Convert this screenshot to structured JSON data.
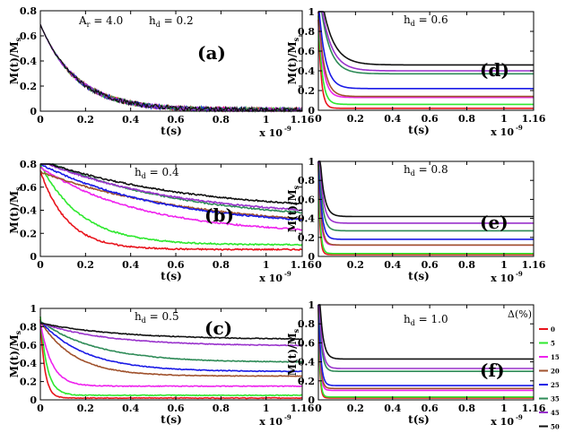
{
  "chart_data": {
    "type": "line",
    "series_colors": [
      "#e8141c",
      "#2ee82e",
      "#ee22ee",
      "#a0522d",
      "#1a1ae6",
      "#2e8b57",
      "#9932cc",
      "#111111"
    ],
    "legend": {
      "title": "Δ(%)",
      "entries": [
        "0",
        "5",
        "15",
        "20",
        "25",
        "35",
        "45",
        "50"
      ]
    },
    "xlabel": "t(s)",
    "ylabel": "M(t)/M",
    "ylabel_sub": "s",
    "x_scale_base": "x 10",
    "x_scale_exp": "-9",
    "panels": [
      {
        "label": "(a)",
        "annotations": [
          "A",
          "r",
          " = 4.0",
          "h",
          "d",
          " = 0.2"
        ],
        "ylim": [
          0,
          0.8
        ],
        "yticks": [
          "0",
          "0.2",
          "0.4",
          "0.6",
          "0.8"
        ],
        "xlim": [
          0,
          1.16
        ],
        "xticks": [
          "0",
          "0.2",
          "0.4",
          "0.6",
          "0.8",
          "1",
          "1.16"
        ],
        "curves": [
          {
            "name": "0",
            "a": 0.68,
            "tau": 0.16,
            "b": 0.01
          },
          {
            "name": "5",
            "a": 0.68,
            "tau": 0.16,
            "b": 0.01
          },
          {
            "name": "15",
            "a": 0.68,
            "tau": 0.16,
            "b": 0.01
          },
          {
            "name": "20",
            "a": 0.68,
            "tau": 0.16,
            "b": 0.01
          },
          {
            "name": "25",
            "a": 0.68,
            "tau": 0.16,
            "b": 0.01
          },
          {
            "name": "35",
            "a": 0.68,
            "tau": 0.16,
            "b": 0.01
          },
          {
            "name": "45",
            "a": 0.68,
            "tau": 0.16,
            "b": 0.01
          },
          {
            "name": "50",
            "a": 0.68,
            "tau": 0.16,
            "b": 0.01
          }
        ]
      },
      {
        "label": "(d)",
        "annotations": [
          "h",
          "d",
          " = 0.6"
        ],
        "ylim": [
          0,
          1
        ],
        "yticks": [
          "0",
          "0.2",
          "0.4",
          "0.6",
          "0.8",
          "1"
        ],
        "xlim": [
          0,
          1.16
        ],
        "xticks": [
          "0",
          "0.2",
          "0.4",
          "0.6",
          "0.8",
          "1",
          "1.16"
        ],
        "curves": [
          {
            "name": "0",
            "a": 0.9,
            "tau": 0.015,
            "b": 0.02
          },
          {
            "name": "5",
            "a": 0.9,
            "tau": 0.02,
            "b": 0.06
          },
          {
            "name": "15",
            "a": 0.9,
            "tau": 0.025,
            "b": 0.13
          },
          {
            "name": "20",
            "a": 0.9,
            "tau": 0.03,
            "b": 0.14
          },
          {
            "name": "25",
            "a": 0.9,
            "tau": 0.035,
            "b": 0.22
          },
          {
            "name": "35",
            "a": 0.9,
            "tau": 0.05,
            "b": 0.37
          },
          {
            "name": "45",
            "a": 0.9,
            "tau": 0.055,
            "b": 0.4
          },
          {
            "name": "50",
            "a": 0.9,
            "tau": 0.06,
            "b": 0.46
          }
        ]
      },
      {
        "label": "(b)",
        "annotations": [
          "h",
          "d",
          " = 0.4"
        ],
        "ylim": [
          0,
          0.8
        ],
        "yticks": [
          "0",
          "0.2",
          "0.4",
          "0.6",
          "0.8"
        ],
        "xlim": [
          0,
          1.16
        ],
        "xticks": [
          "0",
          "0.2",
          "0.4",
          "0.6",
          "0.8",
          "1",
          "1.16"
        ],
        "curves": [
          {
            "name": "0",
            "a": 0.68,
            "tau": 0.12,
            "b": 0.06
          },
          {
            "name": "5",
            "a": 0.7,
            "tau": 0.18,
            "b": 0.1
          },
          {
            "name": "15",
            "a": 0.58,
            "tau": 0.45,
            "b": 0.19
          },
          {
            "name": "20",
            "a": 0.5,
            "tau": 0.7,
            "b": 0.23
          },
          {
            "name": "25",
            "a": 0.55,
            "tau": 0.55,
            "b": 0.25
          },
          {
            "name": "35",
            "a": 0.55,
            "tau": 0.6,
            "b": 0.3
          },
          {
            "name": "45",
            "a": 0.5,
            "tau": 0.6,
            "b": 0.33
          },
          {
            "name": "50",
            "a": 0.45,
            "tau": 0.65,
            "b": 0.38
          }
        ]
      },
      {
        "label": "(e)",
        "annotations": [
          "h",
          "d",
          " = 0.8"
        ],
        "ylim": [
          0,
          1
        ],
        "yticks": [
          "0",
          "0.2",
          "0.4",
          "0.6",
          "0.8",
          "1"
        ],
        "xlim": [
          0,
          1.16
        ],
        "xticks": [
          "0",
          "0.2",
          "0.4",
          "0.6",
          "0.8",
          "1",
          "1.16"
        ],
        "curves": [
          {
            "name": "0",
            "a": 0.95,
            "tau": 0.008,
            "b": 0.02
          },
          {
            "name": "5",
            "a": 0.95,
            "tau": 0.01,
            "b": 0.03
          },
          {
            "name": "15",
            "a": 0.95,
            "tau": 0.012,
            "b": 0.12
          },
          {
            "name": "20",
            "a": 0.95,
            "tau": 0.014,
            "b": 0.12
          },
          {
            "name": "25",
            "a": 0.95,
            "tau": 0.016,
            "b": 0.18
          },
          {
            "name": "35",
            "a": 0.95,
            "tau": 0.018,
            "b": 0.27
          },
          {
            "name": "45",
            "a": 0.95,
            "tau": 0.02,
            "b": 0.35
          },
          {
            "name": "50",
            "a": 0.95,
            "tau": 0.022,
            "b": 0.42
          }
        ]
      },
      {
        "label": "(c)",
        "annotations": [
          "h",
          "d",
          " = 0.5"
        ],
        "ylim": [
          0,
          1
        ],
        "yticks": [
          "0",
          "0.2",
          "0.4",
          "0.6",
          "0.8",
          "1"
        ],
        "xlim": [
          0,
          1.16
        ],
        "xticks": [
          "0",
          "0.2",
          "0.4",
          "0.6",
          "0.8",
          "1",
          "1.16"
        ],
        "curves": [
          {
            "name": "0",
            "a": 0.86,
            "tau": 0.02,
            "b": 0.02
          },
          {
            "name": "5",
            "a": 0.86,
            "tau": 0.03,
            "b": 0.05
          },
          {
            "name": "15",
            "a": 0.7,
            "tau": 0.05,
            "b": 0.15
          },
          {
            "name": "20",
            "a": 0.6,
            "tau": 0.15,
            "b": 0.26
          },
          {
            "name": "25",
            "a": 0.55,
            "tau": 0.2,
            "b": 0.31
          },
          {
            "name": "35",
            "a": 0.45,
            "tau": 0.25,
            "b": 0.41
          },
          {
            "name": "45",
            "a": 0.25,
            "tau": 0.3,
            "b": 0.59
          },
          {
            "name": "50",
            "a": 0.18,
            "tau": 0.35,
            "b": 0.66
          }
        ]
      },
      {
        "label": "(f)",
        "annotations": [
          "h",
          "d",
          " = 1.0"
        ],
        "ylim": [
          0,
          1
        ],
        "yticks": [
          "0",
          "0.2",
          "0.4",
          "0.6",
          "0.8",
          "1"
        ],
        "xlim": [
          0,
          1.16
        ],
        "xticks": [
          "0",
          "0.2",
          "0.4",
          "0.6",
          "0.8",
          "1",
          "1.16"
        ],
        "curves": [
          {
            "name": "0",
            "a": 0.95,
            "tau": 0.007,
            "b": 0.02
          },
          {
            "name": "5",
            "a": 0.95,
            "tau": 0.008,
            "b": 0.03
          },
          {
            "name": "15",
            "a": 0.95,
            "tau": 0.009,
            "b": 0.1
          },
          {
            "name": "20",
            "a": 0.95,
            "tau": 0.01,
            "b": 0.12
          },
          {
            "name": "25",
            "a": 0.95,
            "tau": 0.012,
            "b": 0.15
          },
          {
            "name": "35",
            "a": 0.95,
            "tau": 0.014,
            "b": 0.3
          },
          {
            "name": "45",
            "a": 0.95,
            "tau": 0.016,
            "b": 0.33
          },
          {
            "name": "50",
            "a": 0.95,
            "tau": 0.018,
            "b": 0.43
          }
        ]
      }
    ]
  }
}
